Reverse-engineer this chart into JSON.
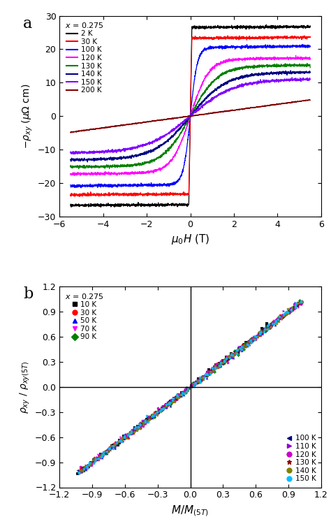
{
  "panel_a": {
    "xlabel": "$\\mu_0H$ (T)",
    "ylabel": "$-\\rho_{xy}$ ($\\mu\\Omega$ cm)",
    "xlim": [
      -5.5,
      5.5
    ],
    "ylim": [
      -30,
      30
    ],
    "xticks": [
      -6,
      -4,
      -2,
      0,
      2,
      4,
      6
    ],
    "yticks": [
      -30,
      -20,
      -10,
      0,
      10,
      20,
      30
    ],
    "curves": [
      {
        "label": "2 K",
        "color": "#000000",
        "sat": 26.5,
        "sw": 0.07,
        "extra": 0.25
      },
      {
        "label": "30 K",
        "color": "#ff0000",
        "sat": 23.3,
        "sw": 0.07,
        "extra": 0.3
      },
      {
        "label": "100 K",
        "color": "#0000ff",
        "sat": 20.5,
        "sw": 0.32,
        "extra": 0.5
      },
      {
        "label": "120 K",
        "color": "#ff00ff",
        "sat": 17.0,
        "sw": 0.85,
        "extra": 0.4
      },
      {
        "label": "130 K",
        "color": "#008000",
        "sat": 15.0,
        "sw": 1.25,
        "extra": 0.3
      },
      {
        "label": "140 K",
        "color": "#000080",
        "sat": 13.0,
        "sw": 1.65,
        "extra": 0.2
      },
      {
        "label": "150 K",
        "color": "#8000ff",
        "sat": 11.0,
        "sw": 2.0,
        "extra": 0.15
      },
      {
        "label": "200 K",
        "color": "#800000",
        "sat": 0.0,
        "sw": 0.0,
        "extra": 0.88
      }
    ]
  },
  "panel_b": {
    "xlabel": "$M / M_{(5T)}$",
    "ylabel": "$\\rho_{xy}$ / $\\rho_{xy(5T)}$",
    "xlim": [
      -1.2,
      1.2
    ],
    "ylim": [
      -1.2,
      1.2
    ],
    "xticks": [
      -1.2,
      -0.9,
      -0.6,
      -0.3,
      0.0,
      0.3,
      0.6,
      0.9,
      1.2
    ],
    "yticks": [
      -1.2,
      -0.9,
      -0.6,
      -0.3,
      0.0,
      0.3,
      0.6,
      0.9,
      1.2
    ],
    "legend1": [
      {
        "label": "10 K",
        "color": "#000000",
        "marker": "s"
      },
      {
        "label": "30 K",
        "color": "#ff0000",
        "marker": "o"
      },
      {
        "label": "50 K",
        "color": "#0000ff",
        "marker": "^"
      },
      {
        "label": "70 K",
        "color": "#ff00ff",
        "marker": "v"
      },
      {
        "label": "90 K",
        "color": "#008000",
        "marker": "D"
      }
    ],
    "legend2": [
      {
        "label": "100 K",
        "color": "#000080",
        "marker": "<"
      },
      {
        "label": "110 K",
        "color": "#9400d3",
        "marker": ">"
      },
      {
        "label": "120 K",
        "color": "#cc00cc",
        "marker": "o"
      },
      {
        "label": "130 K",
        "color": "#8b0000",
        "marker": "*"
      },
      {
        "label": "140 K",
        "color": "#808000",
        "marker": "o"
      },
      {
        "label": "150 K",
        "color": "#00bfff",
        "marker": "o"
      }
    ]
  }
}
